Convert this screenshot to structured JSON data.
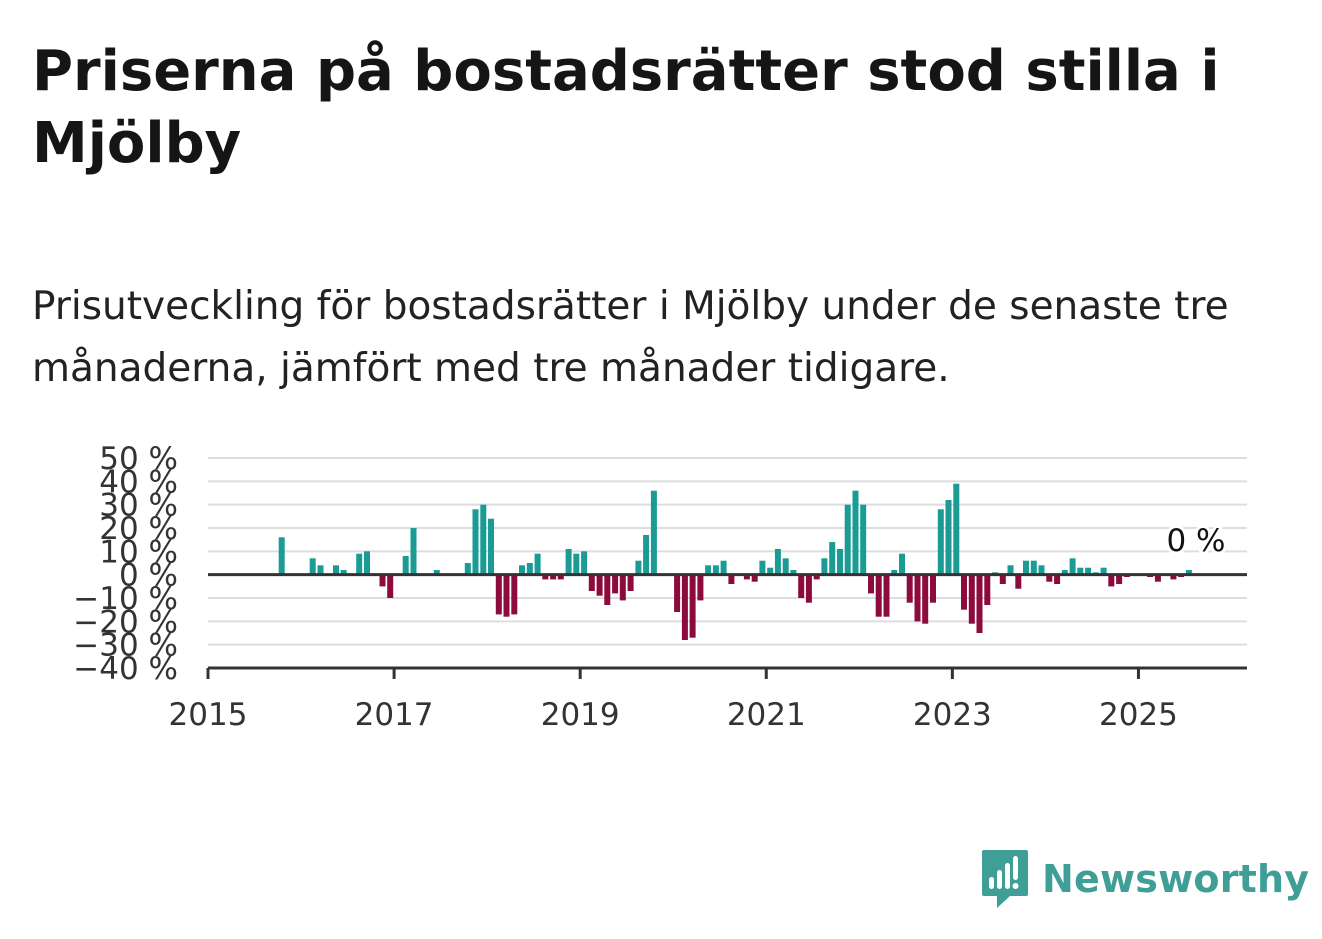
{
  "title": "Priserna på bostadsrätter stod stilla i Mjölby",
  "subtitle": "Prisutveckling för bostadsrätter i Mjölby under de senaste tre månaderna, jämfört med tre månader tidigare.",
  "brand": "Newsworthy",
  "colors": {
    "positive": "#1a9c94",
    "negative": "#8c0a3c",
    "grid": "#dddddd",
    "axis": "#333333",
    "brand": "#3f9e96"
  },
  "chart_data": {
    "type": "bar",
    "x_start": "2015-01",
    "x_end": "2026-03",
    "ylim": [
      -40,
      50
    ],
    "yticks": [
      50,
      40,
      30,
      20,
      10,
      0,
      -10,
      -20,
      -30,
      -40
    ],
    "ytick_labels": [
      "50 %",
      "40 %",
      "30 %",
      "20 %",
      "10 %",
      "0 %",
      "−10 %",
      "−20 %",
      "−30 %",
      "−40 %"
    ],
    "xtick_labels": [
      "2015",
      "2017",
      "2019",
      "2021",
      "2023",
      "2025"
    ],
    "annotation": "0 %",
    "x": [
      "2015-10",
      "2016-02",
      "2016-03",
      "2016-05",
      "2016-06",
      "2016-08",
      "2016-09",
      "2016-11",
      "2016-12",
      "2017-02",
      "2017-03",
      "2017-06",
      "2017-10",
      "2017-11",
      "2017-12",
      "2018-01",
      "2018-02",
      "2018-03",
      "2018-04",
      "2018-05",
      "2018-06",
      "2018-07",
      "2018-08",
      "2018-09",
      "2018-10",
      "2018-11",
      "2018-12",
      "2019-01",
      "2019-02",
      "2019-03",
      "2019-04",
      "2019-05",
      "2019-06",
      "2019-07",
      "2019-08",
      "2019-09",
      "2019-10",
      "2020-01",
      "2020-02",
      "2020-03",
      "2020-04",
      "2020-05",
      "2020-06",
      "2020-07",
      "2020-08",
      "2020-10",
      "2020-11",
      "2020-12",
      "2021-01",
      "2021-02",
      "2021-03",
      "2021-04",
      "2021-05",
      "2021-06",
      "2021-07",
      "2021-08",
      "2021-09",
      "2021-10",
      "2021-11",
      "2021-12",
      "2022-01",
      "2022-02",
      "2022-03",
      "2022-04",
      "2022-05",
      "2022-06",
      "2022-07",
      "2022-08",
      "2022-09",
      "2022-10",
      "2022-11",
      "2022-12",
      "2023-01",
      "2023-02",
      "2023-03",
      "2023-04",
      "2023-05",
      "2023-06",
      "2023-07",
      "2023-08",
      "2023-09",
      "2023-10",
      "2023-11",
      "2023-12",
      "2024-01",
      "2024-02",
      "2024-03",
      "2024-04",
      "2024-05",
      "2024-06",
      "2024-07",
      "2024-08",
      "2024-09",
      "2024-10",
      "2024-11",
      "2025-02",
      "2025-03",
      "2025-05",
      "2025-06",
      "2025-07"
    ],
    "values": [
      16,
      7,
      4,
      4,
      2,
      9,
      10,
      -5,
      -10,
      8,
      20,
      2,
      5,
      28,
      30,
      24,
      -17,
      -18,
      -17,
      4,
      5,
      9,
      -2,
      -2,
      -2,
      11,
      9,
      10,
      -7,
      -9,
      -13,
      -8,
      -11,
      -7,
      6,
      17,
      36,
      -16,
      -28,
      -27,
      -11,
      4,
      4,
      6,
      -4,
      -2,
      -3,
      6,
      3,
      11,
      7,
      2,
      -10,
      -12,
      -2,
      7,
      14,
      11,
      30,
      36,
      30,
      -8,
      -18,
      -18,
      2,
      9,
      -12,
      -20,
      -21,
      -12,
      28,
      32,
      39,
      -15,
      -21,
      -25,
      -13,
      1,
      -4,
      4,
      -6,
      6,
      6,
      4,
      -3,
      -4,
      2,
      7,
      3,
      3,
      1,
      3,
      -5,
      -4,
      -1,
      -1,
      -3,
      -2,
      -1,
      2
    ]
  }
}
